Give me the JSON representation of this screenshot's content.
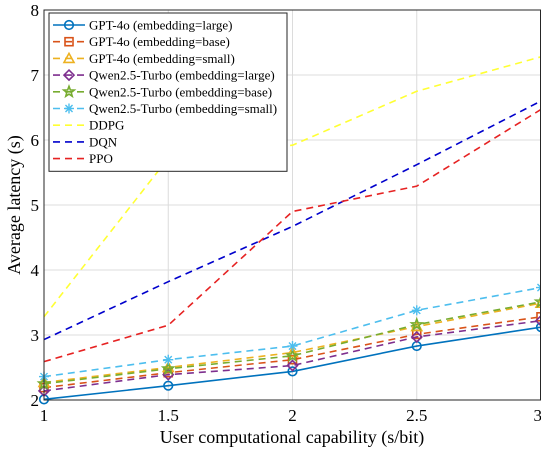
{
  "chart_data": {
    "type": "line",
    "title": "",
    "xlabel": "User computational capability (s/bit)",
    "ylabel": "Average latency (s)",
    "xlim": [
      1,
      3
    ],
    "ylim": [
      2,
      8
    ],
    "x_ticks": [
      "1",
      "1.5",
      "2",
      "2.5",
      "3"
    ],
    "y_ticks": [
      "2",
      "3",
      "4",
      "5",
      "6",
      "7",
      "8"
    ],
    "grid": true,
    "legend_position": "top-left",
    "x": [
      1,
      1.5,
      2,
      2.5,
      3
    ],
    "series": [
      {
        "name": "GPT-4o (embedding=large)",
        "values": [
          2.01,
          2.22,
          2.44,
          2.83,
          3.12
        ],
        "color": "#0072BD",
        "dash": "solid",
        "marker": "circle"
      },
      {
        "name": "GPT-4o (embedding=base)",
        "values": [
          2.19,
          2.42,
          2.62,
          3.01,
          3.28
        ],
        "color": "#D95319",
        "dash": "dashed",
        "marker": "square"
      },
      {
        "name": "GPT-4o (embedding=small)",
        "values": [
          2.27,
          2.5,
          2.73,
          3.13,
          3.49
        ],
        "color": "#EDB120",
        "dash": "dashed",
        "marker": "triangle"
      },
      {
        "name": "Qwen2.5-Turbo (embedding=large)",
        "values": [
          2.14,
          2.39,
          2.53,
          2.97,
          3.22
        ],
        "color": "#7E2F8E",
        "dash": "dashed",
        "marker": "diamond"
      },
      {
        "name": "Qwen2.5-Turbo (embedding=base)",
        "values": [
          2.25,
          2.48,
          2.68,
          3.16,
          3.51
        ],
        "color": "#77AC30",
        "dash": "dashed",
        "marker": "pentagram"
      },
      {
        "name": "Qwen2.5-Turbo (embedding=small)",
        "values": [
          2.36,
          2.62,
          2.83,
          3.38,
          3.73
        ],
        "color": "#4DBEEE",
        "dash": "dashed",
        "marker": "asterisk"
      },
      {
        "name": "DDPG",
        "values": [
          3.28,
          5.72,
          5.92,
          6.75,
          7.28
        ],
        "color": "#FFFF33",
        "dash": "dashed",
        "marker": "none"
      },
      {
        "name": "DQN",
        "values": [
          2.93,
          3.82,
          4.67,
          5.62,
          6.6
        ],
        "color": "#0000CC",
        "dash": "dashed",
        "marker": "none"
      },
      {
        "name": "PPO",
        "values": [
          2.59,
          3.15,
          4.9,
          5.29,
          6.47
        ],
        "color": "#E62222",
        "dash": "dashed",
        "marker": "none"
      }
    ]
  }
}
